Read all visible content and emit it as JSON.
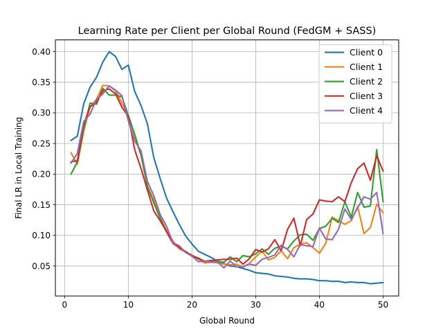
{
  "chart_data": {
    "type": "line",
    "title": "Learning Rate per Client per Global Round (FedGM + SASS)",
    "xlabel": "Global Round",
    "ylabel": "Final LR in Local Training",
    "xlim": [
      -1.45,
      52.45
    ],
    "ylim": [
      0.0011,
      0.4191
    ],
    "xticks": [
      0,
      10,
      20,
      30,
      40,
      50
    ],
    "yticks": [
      0.05,
      0.1,
      0.15,
      0.2,
      0.25,
      0.3,
      0.35,
      0.4
    ],
    "ytick_labels": [
      "0.05",
      "0.10",
      "0.15",
      "0.20",
      "0.25",
      "0.30",
      "0.35",
      "0.40"
    ],
    "grid": true,
    "legend_position": "upper right",
    "x": [
      1,
      2,
      3,
      4,
      5,
      6,
      7,
      8,
      9,
      10,
      11,
      12,
      13,
      14,
      15,
      16,
      17,
      18,
      19,
      20,
      21,
      22,
      23,
      24,
      25,
      26,
      27,
      28,
      29,
      30,
      31,
      32,
      33,
      34,
      35,
      36,
      37,
      38,
      39,
      40,
      41,
      42,
      43,
      44,
      45,
      46,
      47,
      48,
      49,
      50
    ],
    "series": [
      {
        "name": "Client 0",
        "color": "#1f77b4",
        "values": [
          0.255,
          0.262,
          0.315,
          0.342,
          0.358,
          0.383,
          0.4,
          0.392,
          0.371,
          0.378,
          0.335,
          0.312,
          0.282,
          0.227,
          0.193,
          0.161,
          0.139,
          0.118,
          0.099,
          0.086,
          0.074,
          0.069,
          0.064,
          0.058,
          0.054,
          0.05,
          0.049,
          0.046,
          0.043,
          0.039,
          0.038,
          0.037,
          0.034,
          0.033,
          0.032,
          0.03,
          0.029,
          0.029,
          0.028,
          0.026,
          0.026,
          0.025,
          0.025,
          0.023,
          0.024,
          0.023,
          0.023,
          0.021,
          0.022,
          0.023
        ]
      },
      {
        "name": "Client 1",
        "color": "#ff7f0e",
        "values": [
          0.235,
          0.216,
          0.27,
          0.31,
          0.322,
          0.345,
          0.344,
          0.336,
          0.316,
          0.296,
          0.262,
          0.23,
          0.18,
          0.158,
          0.129,
          0.108,
          0.091,
          0.078,
          0.073,
          0.068,
          0.061,
          0.055,
          0.056,
          0.055,
          0.053,
          0.052,
          0.053,
          0.048,
          0.054,
          0.065,
          0.074,
          0.06,
          0.064,
          0.075,
          0.062,
          0.08,
          0.086,
          0.088,
          0.08,
          0.071,
          0.087,
          0.13,
          0.124,
          0.118,
          0.124,
          0.147,
          0.103,
          0.113,
          0.151,
          0.137
        ]
      },
      {
        "name": "Client 2",
        "color": "#2ca02c",
        "values": [
          0.2,
          0.22,
          0.274,
          0.316,
          0.314,
          0.34,
          0.329,
          0.329,
          0.326,
          0.296,
          0.265,
          0.231,
          0.18,
          0.153,
          0.128,
          0.106,
          0.087,
          0.08,
          0.074,
          0.066,
          0.062,
          0.058,
          0.059,
          0.058,
          0.056,
          0.065,
          0.057,
          0.067,
          0.065,
          0.07,
          0.078,
          0.069,
          0.079,
          0.082,
          0.078,
          0.091,
          0.101,
          0.102,
          0.092,
          0.111,
          0.115,
          0.128,
          0.121,
          0.155,
          0.13,
          0.17,
          0.146,
          0.148,
          0.24,
          0.155
        ]
      },
      {
        "name": "Client 3",
        "color": "#d62728",
        "values": [
          0.22,
          0.222,
          0.282,
          0.31,
          0.317,
          0.336,
          0.339,
          0.331,
          0.309,
          0.294,
          0.24,
          0.209,
          0.174,
          0.14,
          0.124,
          0.106,
          0.087,
          0.08,
          0.073,
          0.067,
          0.063,
          0.057,
          0.059,
          0.06,
          0.061,
          0.061,
          0.063,
          0.053,
          0.062,
          0.077,
          0.073,
          0.078,
          0.093,
          0.075,
          0.11,
          0.128,
          0.083,
          0.126,
          0.135,
          0.158,
          0.156,
          0.155,
          0.163,
          0.155,
          0.186,
          0.209,
          0.218,
          0.19,
          0.23,
          0.205
        ]
      },
      {
        "name": "Client 4",
        "color": "#9467bd",
        "values": [
          0.218,
          0.234,
          0.286,
          0.298,
          0.322,
          0.331,
          0.344,
          0.337,
          0.328,
          0.287,
          0.254,
          0.238,
          0.188,
          0.165,
          0.134,
          0.115,
          0.088,
          0.083,
          0.072,
          0.066,
          0.057,
          0.058,
          0.057,
          0.057,
          0.047,
          0.058,
          0.049,
          0.049,
          0.053,
          0.051,
          0.061,
          0.064,
          0.068,
          0.084,
          0.077,
          0.065,
          0.085,
          0.083,
          0.082,
          0.112,
          0.094,
          0.093,
          0.11,
          0.143,
          0.126,
          0.145,
          0.163,
          0.159,
          0.17,
          0.103
        ]
      }
    ]
  }
}
